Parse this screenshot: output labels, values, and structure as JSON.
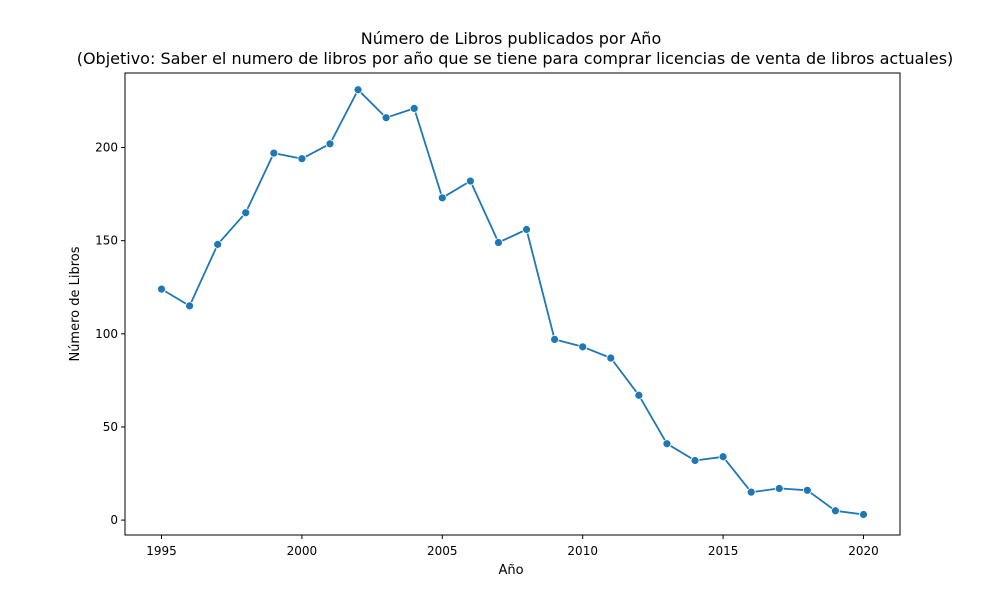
{
  "chart_data": {
    "type": "line",
    "title": "Número de Libros publicados por Año",
    "subtitle": "(Objetivo: Saber el numero de libros por año que se tiene para comprar licencias de venta de libros actuales)",
    "xlabel": "Año",
    "ylabel": "Número de Libros",
    "xlim": [
      1993.7,
      2021.3
    ],
    "ylim": [
      -8,
      240
    ],
    "x_ticks": [
      1995,
      2000,
      2005,
      2010,
      2015,
      2020
    ],
    "y_ticks": [
      0,
      50,
      100,
      150,
      200
    ],
    "grid": false,
    "legend": "none",
    "color": "#1f77b4",
    "x": [
      1995,
      1996,
      1997,
      1998,
      1999,
      2000,
      2001,
      2002,
      2003,
      2004,
      2005,
      2006,
      2007,
      2008,
      2009,
      2010,
      2011,
      2012,
      2013,
      2014,
      2015,
      2016,
      2017,
      2018,
      2019,
      2020
    ],
    "y": [
      124,
      115,
      148,
      165,
      197,
      194,
      202,
      231,
      216,
      221,
      173,
      182,
      149,
      156,
      97,
      93,
      87,
      67,
      41,
      32,
      34,
      15,
      17,
      16,
      5,
      3
    ]
  }
}
